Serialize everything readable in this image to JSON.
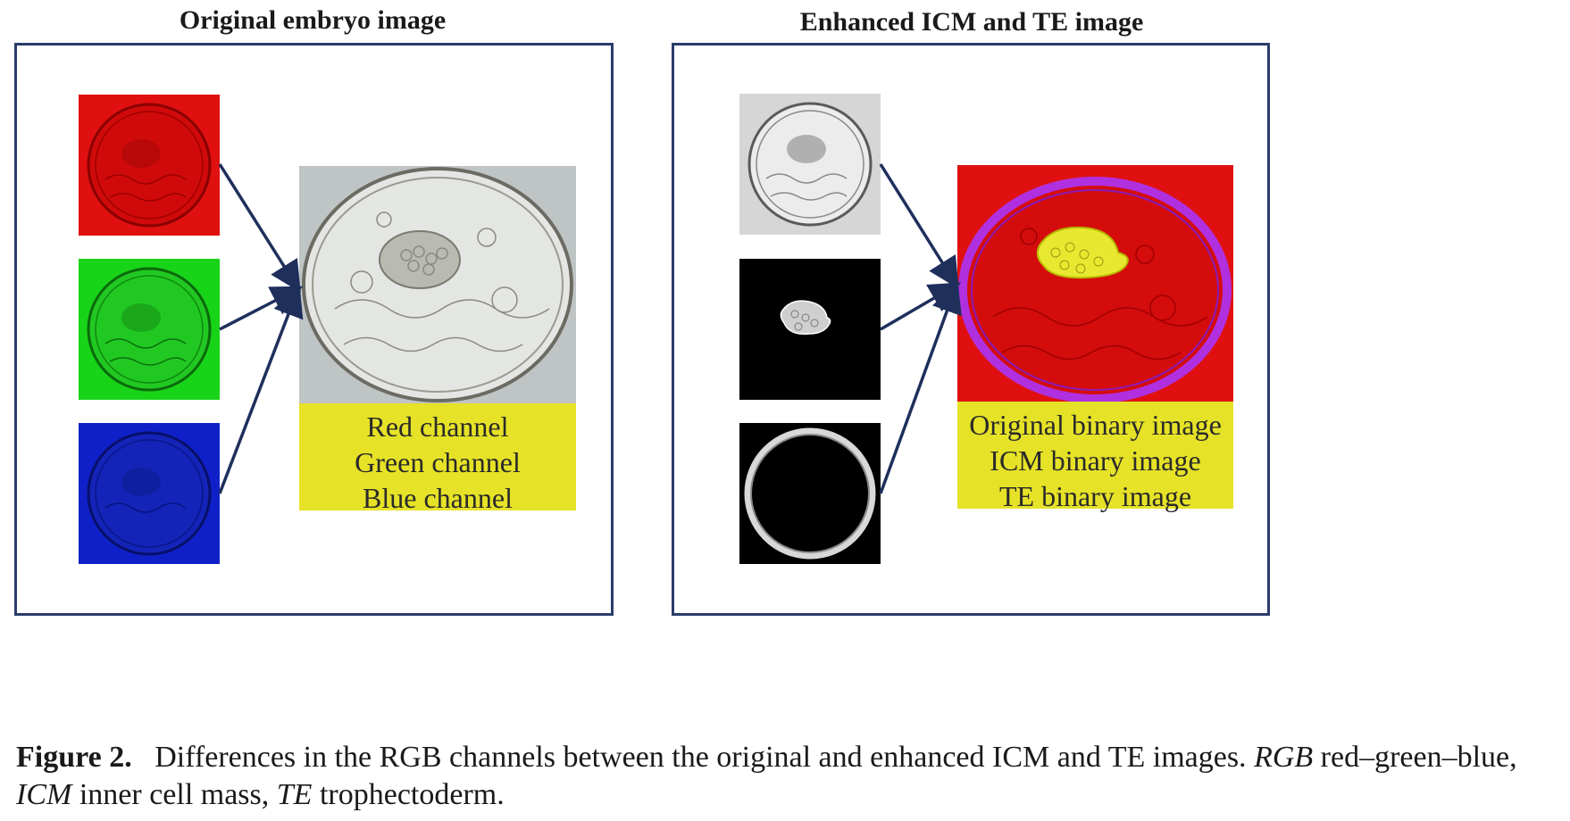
{
  "left_panel": {
    "title": "Original embryo image",
    "thumbnails": [
      "red-channel-image",
      "green-channel-image",
      "blue-channel-image"
    ],
    "label_lines": [
      "Red channel",
      "Green channel",
      "Blue channel"
    ],
    "colors": {
      "red": "#e01010",
      "green": "#18d418",
      "blue": "#1020c8",
      "label_bg": "#e6e227",
      "frame": "#2b3d6b"
    }
  },
  "right_panel": {
    "title": "Enhanced ICM and TE image",
    "thumbnails": [
      "original-binary-image",
      "icm-binary-image",
      "te-binary-image"
    ],
    "label_lines": [
      "Original binary image",
      "ICM binary image",
      "TE binary image"
    ],
    "colors": {
      "composite_bg": "#e01010",
      "icm": "#e8e830",
      "te": "#b030e0"
    }
  },
  "caption": {
    "label": "Figure 2.",
    "text_1": "Differences in the RGB channels between the original and enhanced ICM and TE images.",
    "abbr_rgb": "RGB",
    "text_2": "red–green–blue,",
    "abbr_icm": "ICM",
    "text_3": "inner cell mass,",
    "abbr_te": "TE",
    "text_4": "trophectoderm."
  }
}
